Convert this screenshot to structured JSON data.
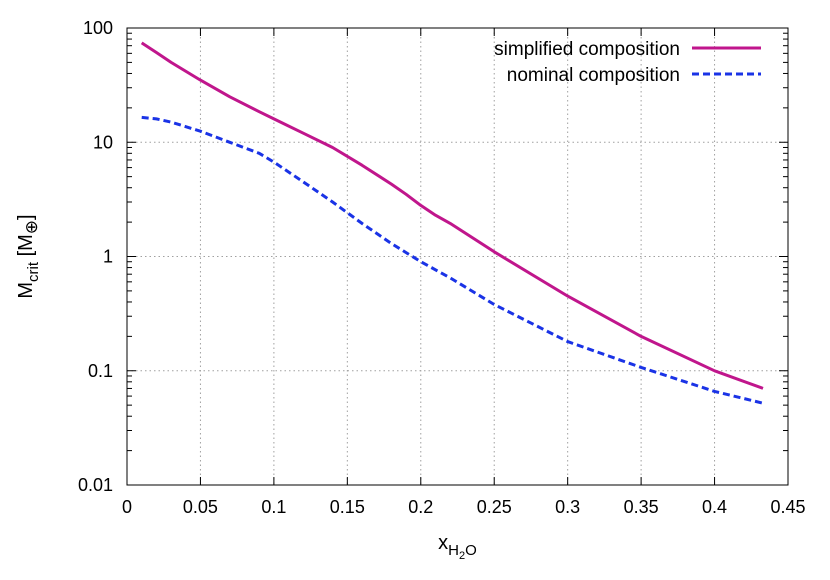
{
  "chart_data": {
    "type": "line",
    "xlabel": {
      "base": "x",
      "sub_parts": [
        {
          "text": "H",
          "sub": false
        },
        {
          "text": "2",
          "sub": true
        },
        {
          "text": "O",
          "sub": false
        }
      ]
    },
    "ylabel": {
      "base": "M",
      "sub": "crit",
      "rest": " [M",
      "sym": "⊕",
      "close": "]"
    },
    "xlim": [
      0,
      0.45
    ],
    "ylim": [
      0.01,
      100
    ],
    "yscale": "log",
    "grid": true,
    "legend_position": "top-right",
    "x_ticks": [
      0,
      0.05,
      0.1,
      0.15,
      0.2,
      0.25,
      0.3,
      0.35,
      0.4,
      0.45
    ],
    "x_tick_labels": [
      "0",
      "0.05",
      "0.1",
      "0.15",
      "0.2",
      "0.25",
      "0.3",
      "0.35",
      "0.4",
      "0.45"
    ],
    "y_ticks": [
      0.01,
      0.1,
      1,
      10,
      100
    ],
    "y_tick_labels": [
      "0.01",
      "0.1",
      "1",
      "10",
      "100"
    ],
    "series": [
      {
        "name": "simplified composition",
        "color": "#c0168c",
        "dash": "solid",
        "x": [
          0.01,
          0.02,
          0.03,
          0.05,
          0.07,
          0.09,
          0.1,
          0.12,
          0.14,
          0.16,
          0.18,
          0.19,
          0.2,
          0.21,
          0.22,
          0.25,
          0.3,
          0.35,
          0.4,
          0.433
        ],
        "y": [
          74,
          61,
          50,
          35,
          25,
          18.5,
          16,
          12,
          9,
          6.3,
          4.3,
          3.5,
          2.8,
          2.3,
          1.95,
          1.1,
          0.45,
          0.2,
          0.1,
          0.07
        ]
      },
      {
        "name": "nominal composition",
        "color": "#1a33e6",
        "dash": "dashed",
        "x": [
          0.01,
          0.02,
          0.03,
          0.05,
          0.07,
          0.09,
          0.1,
          0.12,
          0.14,
          0.16,
          0.18,
          0.2,
          0.22,
          0.25,
          0.3,
          0.35,
          0.4,
          0.433
        ],
        "y": [
          16.5,
          16,
          15,
          12.5,
          10,
          8,
          6.7,
          4.5,
          3,
          1.95,
          1.3,
          0.9,
          0.65,
          0.38,
          0.18,
          0.107,
          0.066,
          0.052
        ]
      }
    ]
  }
}
